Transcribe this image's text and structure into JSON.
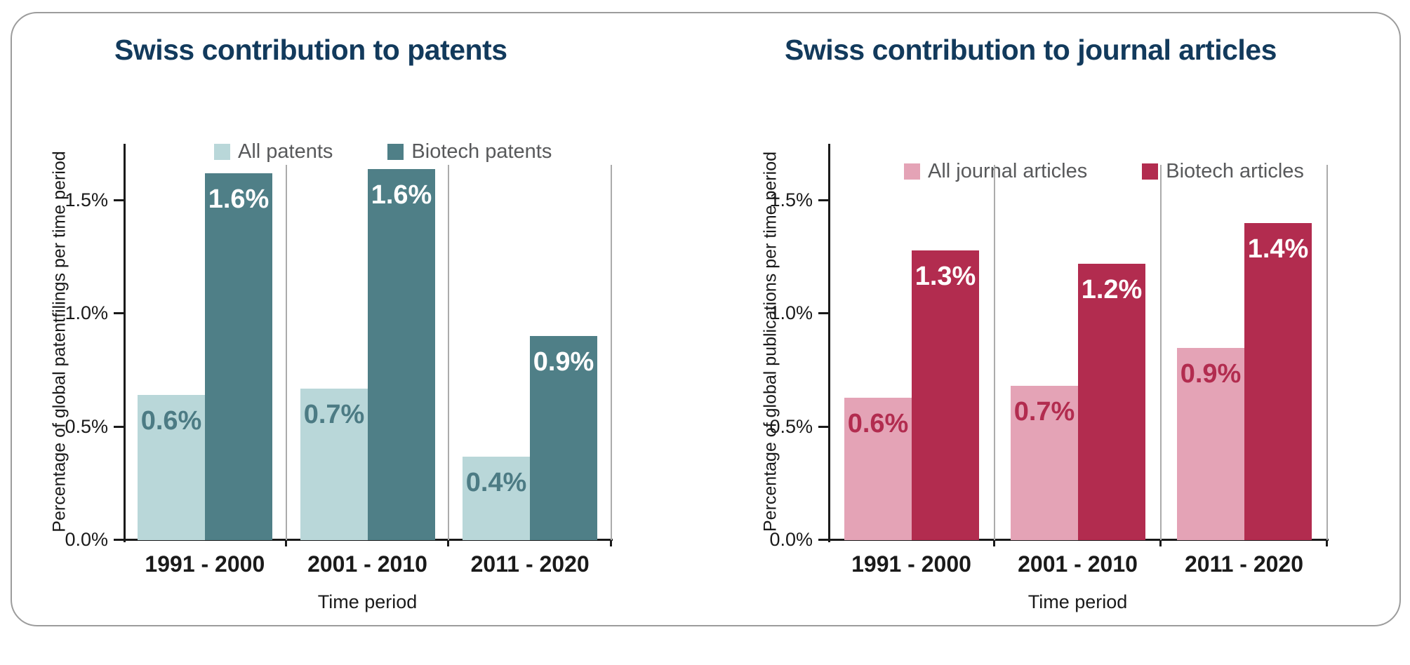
{
  "figure": {
    "background": "#ffffff",
    "card_border_color": "#9c9c9c",
    "axis_color": "#1a1a1a",
    "separator_color": "#ababab",
    "legend_text_color": "#58595b"
  },
  "chart_data": [
    {
      "type": "bar",
      "title": "Swiss contribution to patents",
      "title_color": "#123a5c",
      "xlabel": "Time period",
      "ylabel": "Percentage of global patentfilings per time period",
      "categories": [
        "1991 - 2000",
        "2001 - 2010",
        "2011 - 2020"
      ],
      "yticks": [
        "0.0%",
        "0.5%",
        "1.0%",
        "1.5%"
      ],
      "ytick_values": [
        0,
        0.5,
        1.0,
        1.5
      ],
      "ylim": [
        0,
        1.75
      ],
      "grid": "vertical category separators",
      "legend_position": "top",
      "series": [
        {
          "name": "All patents",
          "color": "#b9d7d9",
          "label_color": "#4c7b84",
          "values": [
            0.64,
            0.67,
            0.37
          ],
          "labels": [
            "0.6%",
            "0.7%",
            "0.4%"
          ]
        },
        {
          "name": "Biotech patents",
          "color": "#4f7f87",
          "label_color": "#ffffff",
          "values": [
            1.62,
            1.64,
            0.9
          ],
          "labels": [
            "1.6%",
            "1.6%",
            "0.9%"
          ]
        }
      ]
    },
    {
      "type": "bar",
      "title": "Swiss contribution to journal articles",
      "title_color": "#123a5c",
      "xlabel": "Time period",
      "ylabel": "Percentage of global publications per time period",
      "categories": [
        "1991 - 2000",
        "2001 - 2010",
        "2011 - 2020"
      ],
      "yticks": [
        "0.0%",
        "0.5%",
        "1.0%",
        "1.5%"
      ],
      "ytick_values": [
        0,
        0.5,
        1.0,
        1.5
      ],
      "ylim": [
        0,
        1.75
      ],
      "grid": "vertical category separators",
      "legend_position": "top",
      "series": [
        {
          "name": "All journal articles",
          "color": "#e4a3b6",
          "label_color": "#b22c4f",
          "values": [
            0.63,
            0.68,
            0.85
          ],
          "labels": [
            "0.6%",
            "0.7%",
            "0.9%"
          ]
        },
        {
          "name": "Biotech articles",
          "color": "#b22c4f",
          "label_color": "#ffffff",
          "values": [
            1.28,
            1.22,
            1.4
          ],
          "labels": [
            "1.3%",
            "1.2%",
            "1.4%"
          ]
        }
      ]
    }
  ]
}
